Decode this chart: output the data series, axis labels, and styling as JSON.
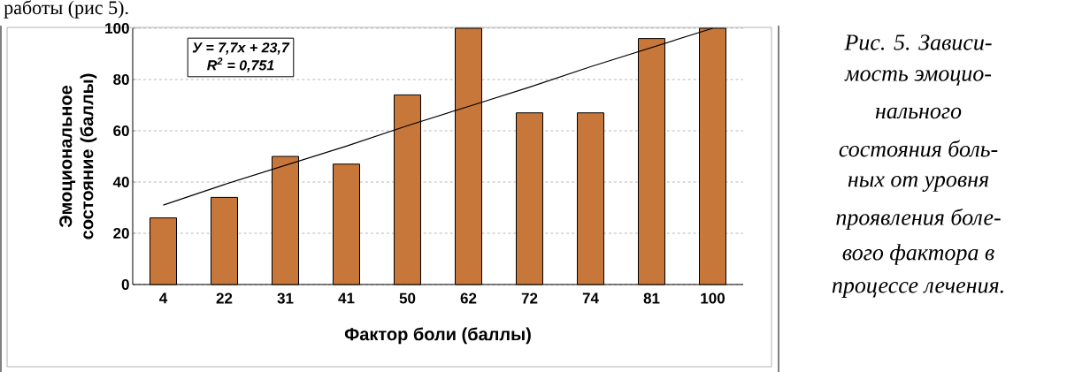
{
  "chart_data": {
    "type": "bar",
    "xlabel": "Фактор  боли  (баллы)",
    "ylabel": "Эмоциональное состояние  (баллы)",
    "categories": [
      "4",
      "22",
      "31",
      "41",
      "50",
      "62",
      "72",
      "74",
      "81",
      "100"
    ],
    "series": [
      {
        "color": "#c8773a",
        "values": [
          26,
          34,
          50,
          47,
          74,
          100,
          67,
          67,
          96,
          100
        ]
      },
      {
        "type": "line",
        "color": "#000000",
        "values": [
          31,
          39,
          46.5,
          54,
          62,
          69.5,
          77,
          85,
          92.5,
          100
        ]
      }
    ],
    "ylim": [
      0,
      100
    ],
    "yticks": [
      0,
      20,
      40,
      60,
      80,
      100
    ],
    "grid": "y",
    "annotations": [
      "работы (рис 5).",
      "У = 7,7x + 23,7",
      "R$^{2}$ = 0,751",
      "Рис. 5. Зависи-",
      "мость эмоцио-",
      "нального",
      "состояния боль-",
      "ных от уровня",
      "проявления боле-",
      "вого фактора в",
      "процессе лечения."
    ]
  }
}
